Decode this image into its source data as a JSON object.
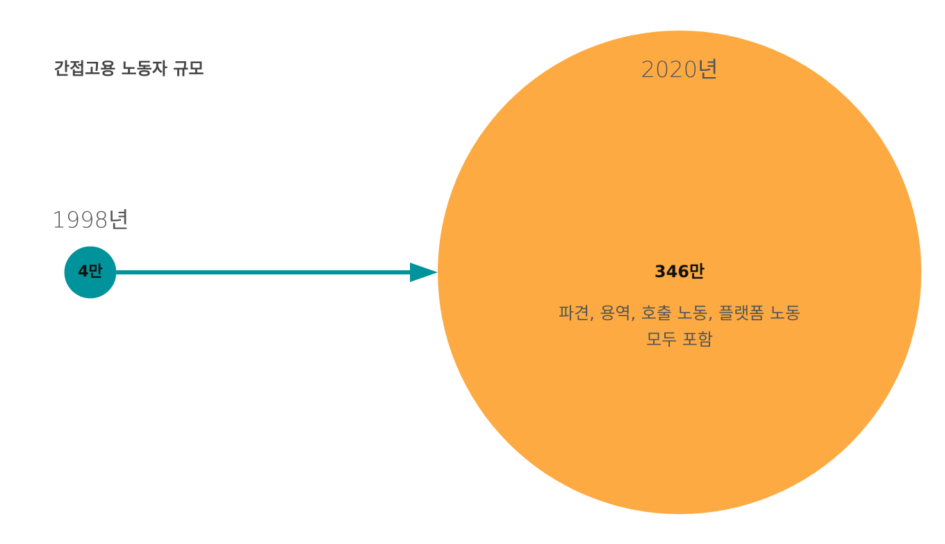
{
  "chart_data": {
    "type": "bubble",
    "title": "간접고용 노동자 규모",
    "categories": [
      "1998년",
      "2020년"
    ],
    "values": [
      4,
      346
    ],
    "value_labels": [
      "4만",
      "346만"
    ],
    "colors": [
      "#00939b",
      "#fdaa42"
    ],
    "annotations": [
      "파견, 용역, 호출 노동, 플랫폼 노동",
      "모두 포함"
    ]
  }
}
